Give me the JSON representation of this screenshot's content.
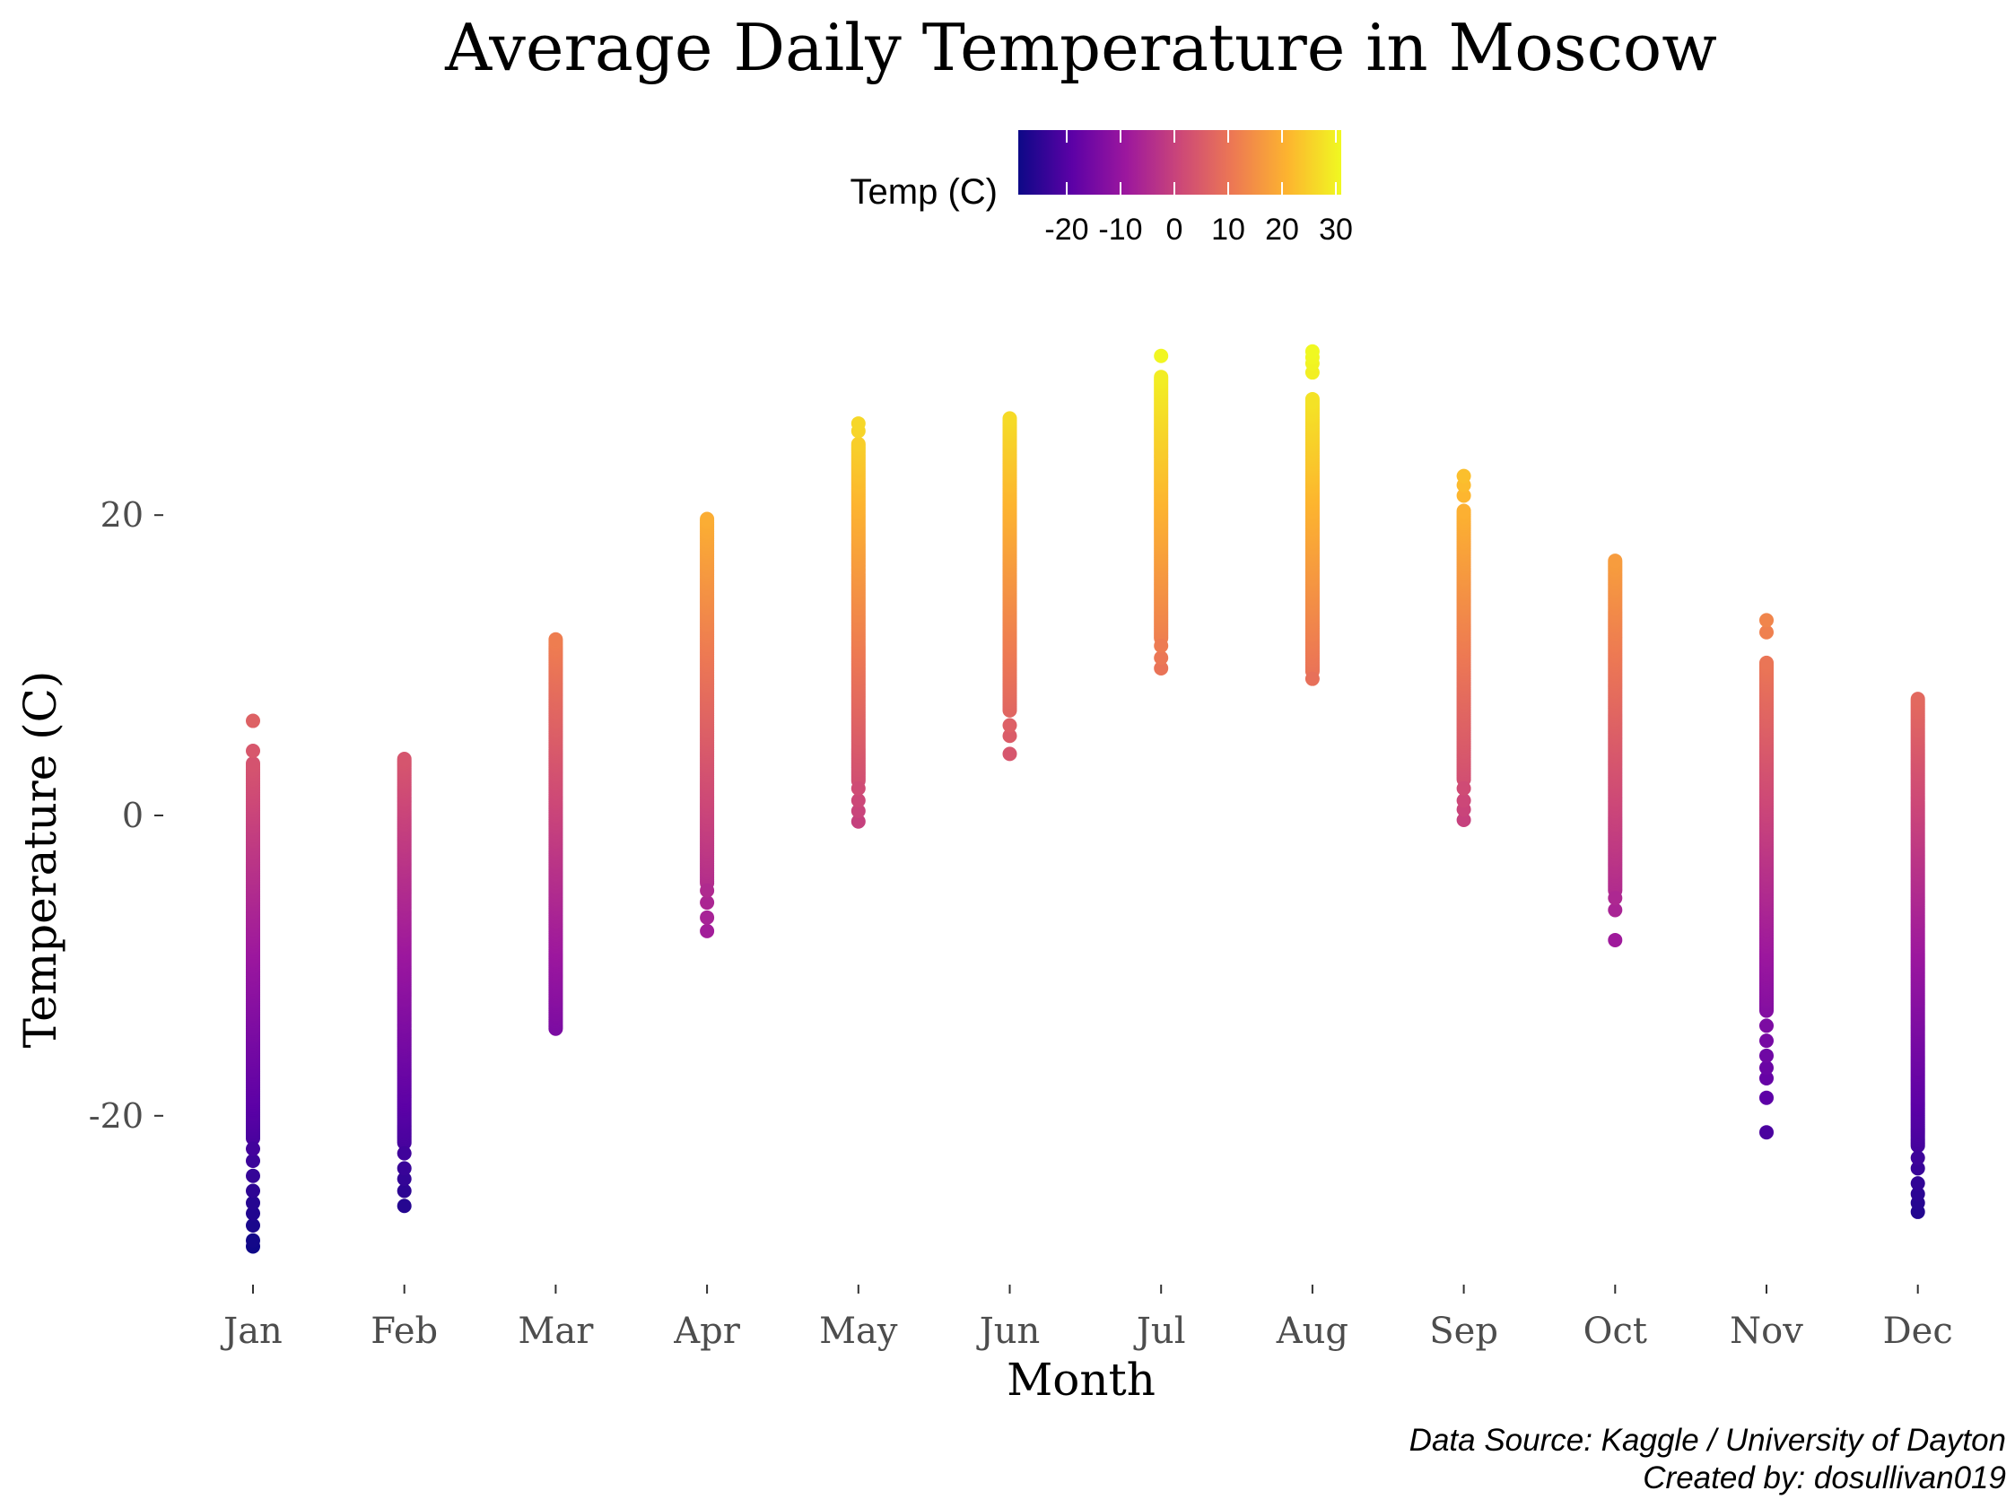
{
  "chart_data": {
    "type": "scatter",
    "title": "Average Daily Temperature in Moscow",
    "xlabel": "Month",
    "ylabel": "Temperature (C)",
    "categories": [
      "Jan",
      "Feb",
      "Mar",
      "Apr",
      "May",
      "Jun",
      "Jul",
      "Aug",
      "Sep",
      "Oct",
      "Nov",
      "Dec"
    ],
    "ylim": [
      -31.5,
      33.5
    ],
    "yticks": [
      -20,
      0,
      20
    ],
    "ytick_labels": [
      "-20",
      "0",
      "20"
    ],
    "grid": false,
    "legend": {
      "title": "Temp (C)",
      "position": "top",
      "ticks": [
        -20,
        -10,
        0,
        10,
        20,
        30
      ],
      "tick_labels": [
        "-20",
        "-10",
        "0",
        "10",
        "20",
        "30"
      ],
      "range": [
        -29,
        31
      ]
    },
    "colormap": [
      "#0d0887",
      "#5c01a6",
      "#9c179e",
      "#cc4778",
      "#ed7953",
      "#fdb42f",
      "#f0f921"
    ],
    "series": [
      {
        "month": "Jan",
        "min": -28.7,
        "max": 6.3,
        "outliers_low": [
          -28.7,
          -28.3,
          -27.3,
          -26.5,
          -25.8,
          -25.0,
          -24.0,
          -23.0,
          -22.2
        ],
        "outliers_high": [
          4.3,
          6.3
        ],
        "dense_min": -21.5,
        "dense_max": 3.5
      },
      {
        "month": "Feb",
        "min": -26.0,
        "max": 3.8,
        "outliers_low": [
          -26.0,
          -25.0,
          -24.2,
          -23.5,
          -22.5
        ],
        "outliers_high": [],
        "dense_min": -21.8,
        "dense_max": 3.8
      },
      {
        "month": "Mar",
        "min": -14.2,
        "max": 11.8,
        "outliers_low": [],
        "outliers_high": [],
        "dense_min": -14.2,
        "dense_max": 11.8
      },
      {
        "month": "Apr",
        "min": -7.7,
        "max": 19.8,
        "outliers_low": [
          -7.7,
          -6.8,
          -5.8,
          -5.0
        ],
        "outliers_high": [],
        "dense_min": -4.5,
        "dense_max": 19.8
      },
      {
        "month": "May",
        "min": -0.4,
        "max": 26.1,
        "outliers_low": [
          -0.4,
          0.3,
          1.0,
          1.8
        ],
        "outliers_high": [
          25.6,
          26.1
        ],
        "dense_min": 2.3,
        "dense_max": 24.8
      },
      {
        "month": "Jun",
        "min": 4.1,
        "max": 26.5,
        "outliers_low": [
          4.1,
          5.3,
          6.0
        ],
        "outliers_high": [],
        "dense_min": 7.0,
        "dense_max": 26.5
      },
      {
        "month": "Jul",
        "min": 9.8,
        "max": 30.6,
        "outliers_low": [
          9.8,
          10.5,
          11.3
        ],
        "outliers_high": [
          30.6
        ],
        "dense_min": 11.8,
        "dense_max": 29.3
      },
      {
        "month": "Aug",
        "min": 9.1,
        "max": 30.9,
        "outliers_low": [
          9.1
        ],
        "outliers_high": [
          29.5,
          30.1,
          30.5,
          30.9
        ],
        "dense_min": 9.6,
        "dense_max": 27.8
      },
      {
        "month": "Sep",
        "min": -0.3,
        "max": 22.6,
        "outliers_low": [
          -0.3,
          0.4,
          1.0,
          1.8
        ],
        "outliers_high": [
          21.3,
          22.0,
          22.6
        ],
        "dense_min": 2.4,
        "dense_max": 20.3
      },
      {
        "month": "Oct",
        "min": -8.3,
        "max": 17.0,
        "outliers_low": [
          -8.3,
          -6.3,
          -5.5
        ],
        "outliers_high": [],
        "dense_min": -5.0,
        "dense_max": 17.0
      },
      {
        "month": "Nov",
        "min": -21.1,
        "max": 13.0,
        "outliers_low": [
          -21.1,
          -18.8,
          -17.5,
          -16.8,
          -16.0,
          -15.0,
          -14.0
        ],
        "outliers_high": [
          12.2,
          13.0
        ],
        "dense_min": -13.0,
        "dense_max": 10.2
      },
      {
        "month": "Dec",
        "min": -26.4,
        "max": 7.8,
        "outliers_low": [
          -26.4,
          -25.8,
          -25.2,
          -24.5,
          -23.5,
          -22.8
        ],
        "outliers_high": [],
        "dense_min": -22.0,
        "dense_max": 7.8
      }
    ]
  },
  "caption": {
    "line1": "Data Source: Kaggle / University of Dayton",
    "line2": "Created by: dosullivan019"
  }
}
